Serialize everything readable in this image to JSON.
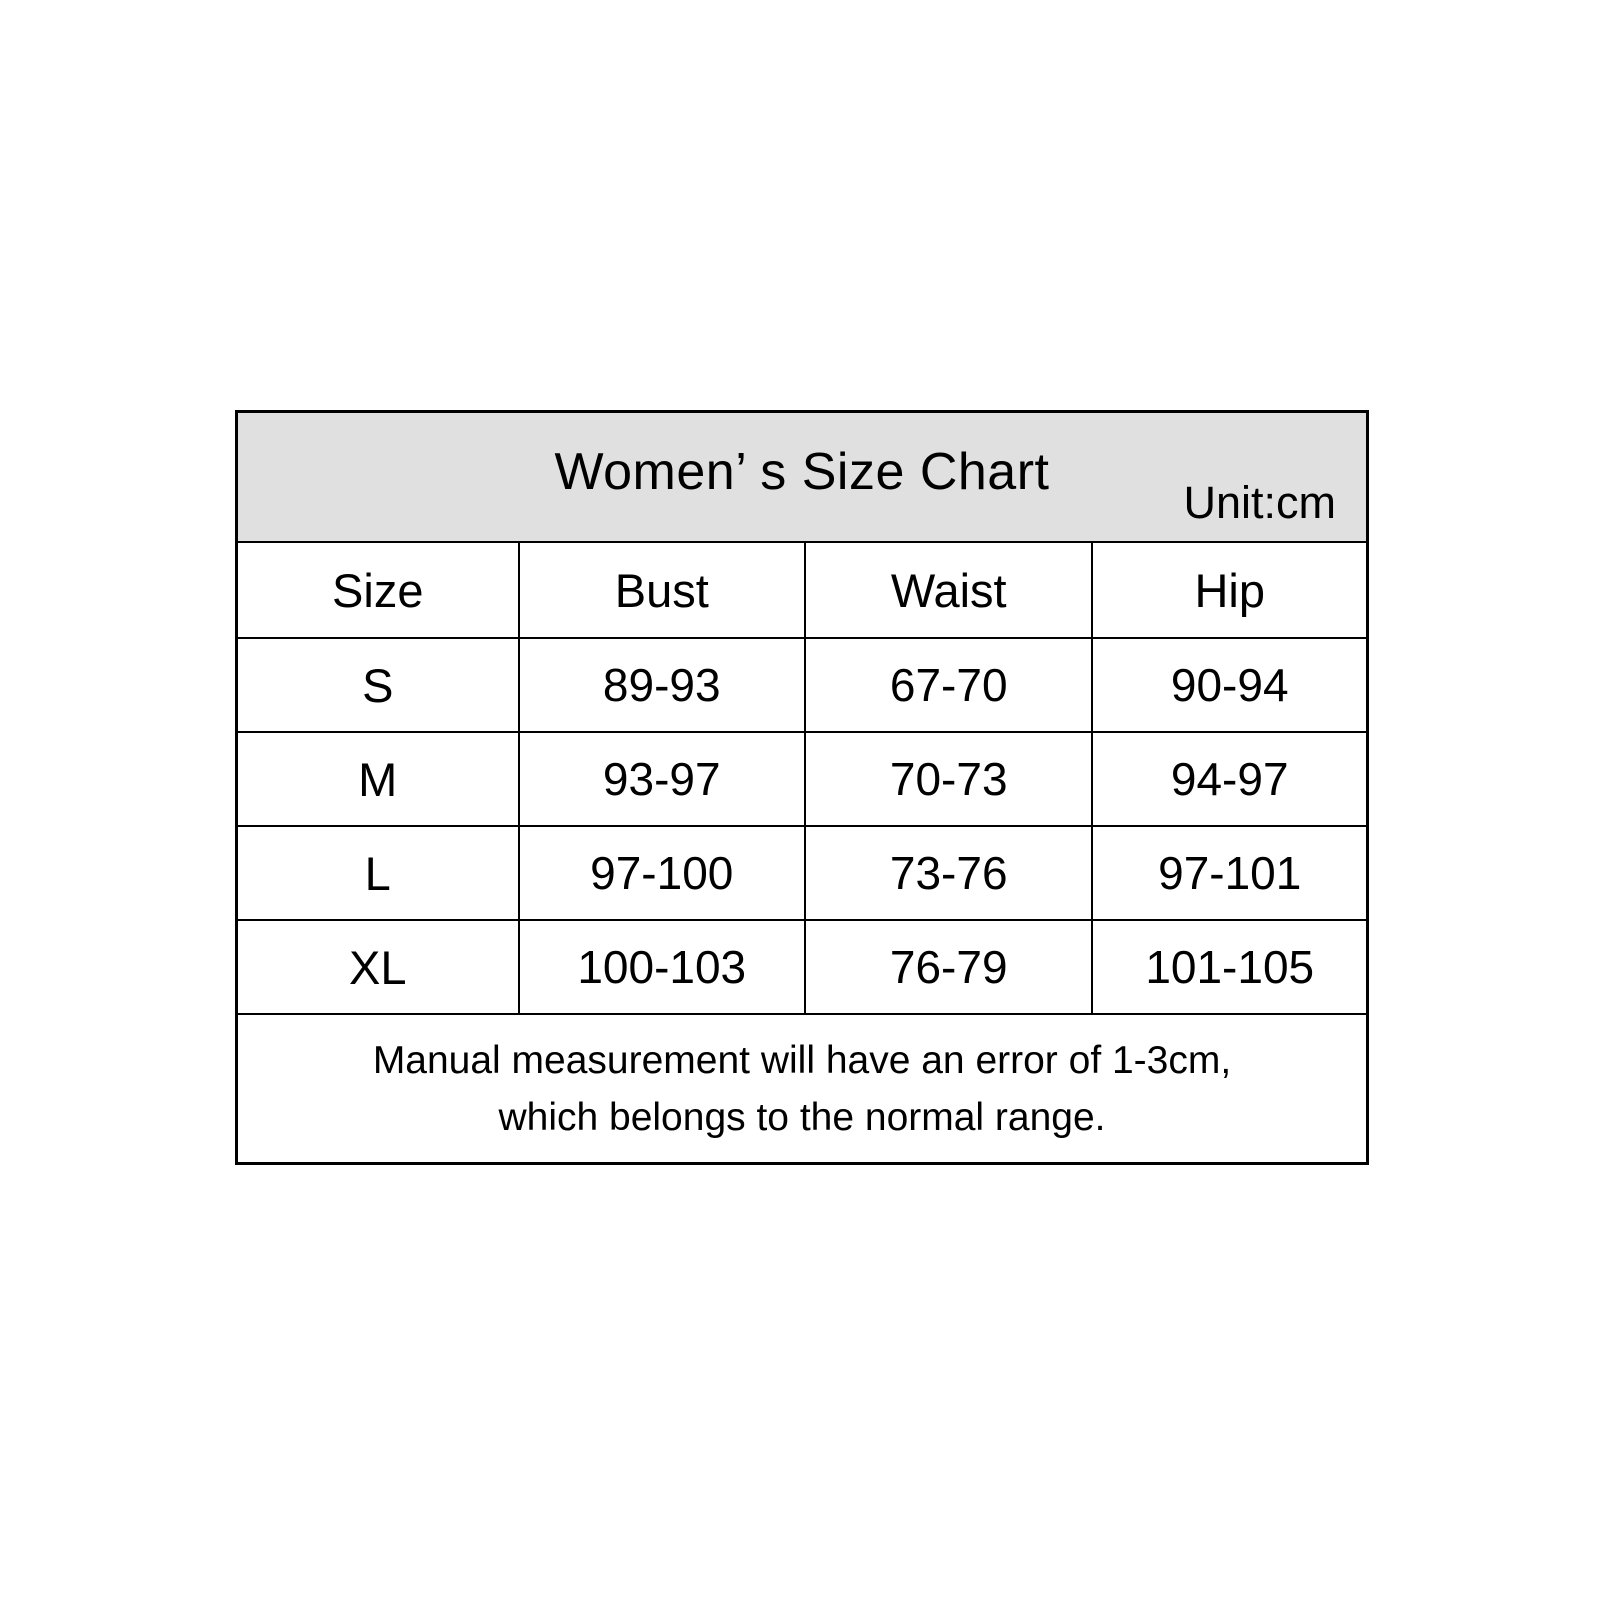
{
  "canvas": {
    "background": "#ffffff"
  },
  "table": {
    "title": "Women’ s Size Chart",
    "unit": "Unit:cm",
    "columns": [
      "Size",
      "Bust",
      "Waist",
      "Hip"
    ],
    "rows": [
      {
        "size": "S",
        "bust": "89-93",
        "waist": "67-70",
        "hip": "90-94"
      },
      {
        "size": "M",
        "bust": "93-97",
        "waist": "70-73",
        "hip": "94-97"
      },
      {
        "size": "L",
        "bust": "97-100",
        "waist": "73-76",
        "hip": "97-101"
      },
      {
        "size": "XL",
        "bust": "100-103",
        "waist": "76-79",
        "hip": "101-105"
      }
    ],
    "note": {
      "line1": "Manual measurement will have an error of 1-3cm,",
      "line2": "which belongs to the normal range."
    },
    "colors": {
      "title_band_bg": "#e0e0e0",
      "border": "#000000",
      "text": "#000000",
      "page_bg": "#ffffff"
    }
  },
  "chart_data": {
    "type": "table",
    "title": "Women’ s Size Chart",
    "unit": "cm",
    "columns": [
      "Size",
      "Bust",
      "Waist",
      "Hip"
    ],
    "rows": [
      [
        "S",
        "89-93",
        "67-70",
        "90-94"
      ],
      [
        "M",
        "93-97",
        "70-73",
        "94-97"
      ],
      [
        "L",
        "97-100",
        "73-76",
        "97-101"
      ],
      [
        "XL",
        "100-103",
        "76-79",
        "101-105"
      ]
    ],
    "note": "Manual measurement will have an error of 1-3cm, which belongs to the normal range."
  }
}
